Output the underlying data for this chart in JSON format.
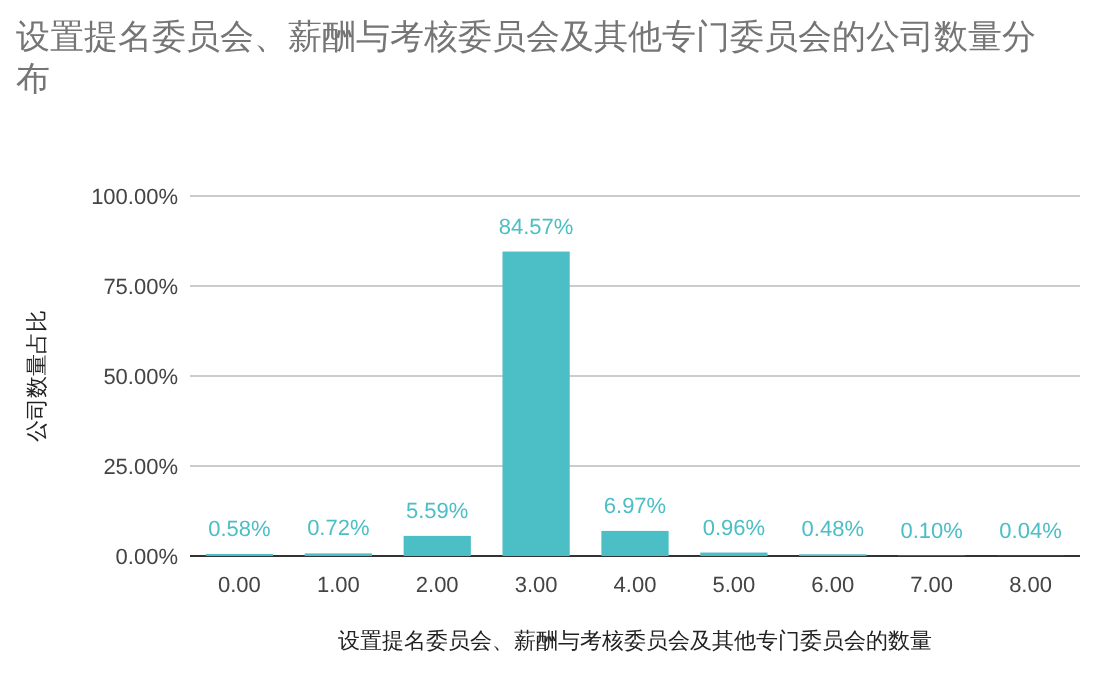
{
  "chart_data": {
    "type": "bar",
    "title": "设置提名委员会、薪酬与考核委员会及其他专门委员会的公司数量分布",
    "xlabel": "设置提名委员会、薪酬与考核委员会及其他专门委员会的数量",
    "ylabel": "公司数量占比",
    "categories": [
      "0.00",
      "1.00",
      "2.00",
      "3.00",
      "4.00",
      "5.00",
      "6.00",
      "7.00",
      "8.00"
    ],
    "values": [
      0.58,
      0.72,
      5.59,
      84.57,
      6.97,
      0.96,
      0.48,
      0.1,
      0.04
    ],
    "value_labels": [
      "0.58%",
      "0.72%",
      "5.59%",
      "84.57%",
      "6.97%",
      "0.96%",
      "0.48%",
      "0.10%",
      "0.04%"
    ],
    "color": "#4bbec6",
    "ylim": [
      0,
      100
    ],
    "yticks": [
      {
        "value": 0,
        "label": "0.00%"
      },
      {
        "value": 25,
        "label": "25.00%"
      },
      {
        "value": 50,
        "label": "50.00%"
      },
      {
        "value": 75,
        "label": "75.00%"
      },
      {
        "value": 100,
        "label": "100.00%"
      }
    ],
    "grid": "y"
  }
}
